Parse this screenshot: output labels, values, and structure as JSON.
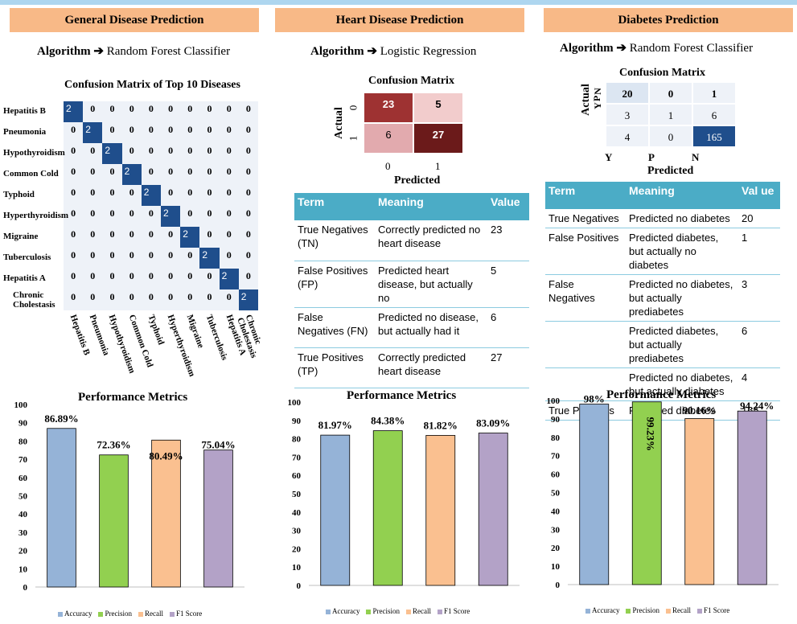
{
  "sections": [
    {
      "title": "General Disease Prediction",
      "algorithm_label": "Algorithm",
      "algorithm_arrow": "➔",
      "algorithm": "Random Forest Classifier",
      "cm_title": "Confusion Matrix of Top 10 Diseases",
      "cm_labels": [
        "Hepatitis B",
        "Pneumonia",
        "Hypothyroidism",
        "Common Cold",
        "Typhoid",
        "Hyperthyroidism",
        "Migraine",
        "Tuberculosis",
        "Hepatitis A",
        "Chronic Cholestasis"
      ],
      "cm_values": [
        [
          2,
          0,
          0,
          0,
          0,
          0,
          0,
          0,
          0,
          0
        ],
        [
          0,
          2,
          0,
          0,
          0,
          0,
          0,
          0,
          0,
          0
        ],
        [
          0,
          0,
          2,
          0,
          0,
          0,
          0,
          0,
          0,
          0
        ],
        [
          0,
          0,
          0,
          2,
          0,
          0,
          0,
          0,
          0,
          0
        ],
        [
          0,
          0,
          0,
          0,
          2,
          0,
          0,
          0,
          0,
          0
        ],
        [
          0,
          0,
          0,
          0,
          0,
          2,
          0,
          0,
          0,
          0
        ],
        [
          0,
          0,
          0,
          0,
          0,
          0,
          2,
          0,
          0,
          0
        ],
        [
          0,
          0,
          0,
          0,
          0,
          0,
          0,
          2,
          0,
          0
        ],
        [
          0,
          0,
          0,
          0,
          0,
          0,
          0,
          0,
          2,
          0
        ],
        [
          0,
          0,
          0,
          0,
          0,
          0,
          0,
          0,
          0,
          2
        ]
      ]
    },
    {
      "title": "Heart Disease Prediction",
      "algorithm_label": "Algorithm",
      "algorithm_arrow": "➔",
      "algorithm": "Logistic Regression",
      "cm_title": "Confusion Matrix",
      "cm_xlabel": "Predicted",
      "cm_ylabel": "Actual",
      "cm_ticks": [
        "0",
        "1"
      ],
      "cm_values": [
        [
          23,
          5
        ],
        [
          6,
          27
        ]
      ],
      "table": {
        "headers": [
          "Term",
          "Meaning",
          "Value"
        ],
        "rows": [
          [
            "True Negatives (TN)",
            "Correctly predicted no heart disease",
            "23"
          ],
          [
            "False Positives (FP)",
            "Predicted heart disease, but actually no",
            "5"
          ],
          [
            "False Negatives (FN)",
            "Predicted no disease, but actually had it",
            "6"
          ],
          [
            "True Positives (TP)",
            "Correctly predicted heart disease",
            "27"
          ]
        ]
      }
    },
    {
      "title": "Diabetes Prediction",
      "algorithm_label": "Algorithm",
      "algorithm_arrow": "➔",
      "algorithm": "Random Forest Classifier",
      "cm_title": "Confusion Matrix",
      "cm_xlabel": "Predicted",
      "cm_ylabel": "Actual",
      "cm_ticks": [
        "Y",
        "P",
        "N"
      ],
      "cm_values": [
        [
          20,
          0,
          1
        ],
        [
          3,
          1,
          6
        ],
        [
          4,
          0,
          165
        ]
      ],
      "table": {
        "headers": [
          "Term",
          "Meaning",
          "Val ue"
        ],
        "rows": [
          [
            "True Negatives",
            "Predicted no diabetes",
            "20"
          ],
          [
            "False Positives",
            "Predicted diabetes, but actually no diabetes",
            "1"
          ],
          [
            "False Negatives",
            "Predicted no diabetes, but actually prediabetes",
            "3"
          ],
          [
            "",
            "Predicted diabetes, but actually prediabetes",
            "6"
          ],
          [
            "",
            "Predicted no diabetes, but actually diabetes",
            "4"
          ],
          [
            "True Positives",
            "Predicted diabetes",
            "165"
          ]
        ]
      }
    }
  ],
  "chart_data": [
    {
      "type": "bar",
      "title": "Performance Metrics",
      "categories": [
        "Accuracy",
        "Precision",
        "Recall",
        "F1 Score"
      ],
      "values": [
        86.89,
        72.36,
        80.49,
        75.04
      ],
      "labels": [
        "86.89%",
        "72.36%",
        "80.49%",
        "75.04%"
      ],
      "ylim": [
        0,
        100
      ],
      "yticks": [
        0,
        10,
        20,
        30,
        40,
        50,
        60,
        70,
        80,
        90,
        100
      ],
      "colors": [
        "#95b3d7",
        "#92d050",
        "#fac090",
        "#b3a2c7"
      ],
      "legend": "bottom"
    },
    {
      "type": "bar",
      "title": "Performance Metrics",
      "categories": [
        "Accuracy",
        "Precision",
        "Recall",
        "F1 Score"
      ],
      "values": [
        81.97,
        84.38,
        81.82,
        83.09
      ],
      "labels": [
        "81.97%",
        "84.38%",
        "81.82%",
        "83.09%"
      ],
      "ylim": [
        0,
        100
      ],
      "yticks": [
        0,
        10,
        20,
        30,
        40,
        50,
        60,
        70,
        80,
        90,
        100
      ],
      "colors": [
        "#95b3d7",
        "#92d050",
        "#fac090",
        "#b3a2c7"
      ],
      "legend": "bottom"
    },
    {
      "type": "bar",
      "title": "Performance Metrics",
      "categories": [
        "Accuracy",
        "Precision",
        "Recall",
        "F1 Score"
      ],
      "values": [
        98,
        99.23,
        90.16,
        94.24
      ],
      "labels": [
        "98%",
        "99.23%",
        "90.16%",
        "94.24%"
      ],
      "ylim": [
        0,
        100
      ],
      "yticks": [
        0,
        10,
        20,
        30,
        40,
        50,
        60,
        70,
        80,
        90,
        100
      ],
      "colors": [
        "#95b3d7",
        "#92d050",
        "#fac090",
        "#b3a2c7"
      ],
      "legend": "bottom"
    }
  ]
}
